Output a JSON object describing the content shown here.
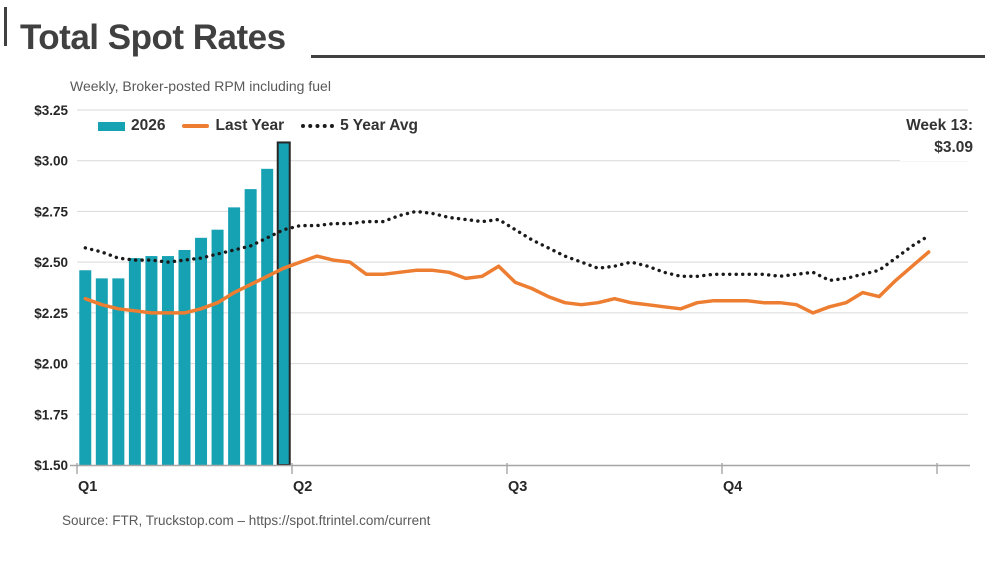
{
  "header": {
    "title": "Total Spot Rates"
  },
  "chart_data": {
    "type": "bar",
    "subtitle": "Weekly, Broker-posted RPM including fuel",
    "ylim": [
      1.5,
      3.25
    ],
    "y_ticks": [
      {
        "label": "$3.25",
        "value": 3.25
      },
      {
        "label": "$3.00",
        "value": 3.0
      },
      {
        "label": "$2.75",
        "value": 2.75
      },
      {
        "label": "$2.50",
        "value": 2.5
      },
      {
        "label": "$2.25",
        "value": 2.25
      },
      {
        "label": "$2.00",
        "value": 2.0
      },
      {
        "label": "$1.75",
        "value": 1.75
      },
      {
        "label": "$1.50",
        "value": 1.5
      }
    ],
    "x_ticks": [
      {
        "label": "Q1",
        "week": 0
      },
      {
        "label": "Q2",
        "week": 13
      },
      {
        "label": "Q3",
        "week": 26
      },
      {
        "label": "Q4",
        "week": 39
      }
    ],
    "axis_tick_weeks": [
      0,
      13,
      26,
      39,
      52
    ],
    "total_weeks": 52,
    "grid": true,
    "legend_position": "top-left",
    "annotation": {
      "line1": "Week 13:",
      "line2": "$3.09"
    },
    "colors": {
      "bar": "#17a2b3",
      "bar_highlight_border": "#262626",
      "last_year": "#ed7d31",
      "five_year_avg": "#1a1a1a",
      "gridline": "#d9d9d9",
      "axis": "#a6a6a6",
      "tick_label": "#262626"
    },
    "series": [
      {
        "name": "2026",
        "type": "bar",
        "color": "#17a2b3",
        "highlight_last": true,
        "values": [
          2.46,
          2.42,
          2.42,
          2.52,
          2.53,
          2.53,
          2.56,
          2.62,
          2.66,
          2.77,
          2.86,
          2.96,
          3.09
        ]
      },
      {
        "name": "Last Year",
        "type": "line",
        "color": "#ed7d31",
        "values": [
          2.32,
          2.29,
          2.27,
          2.26,
          2.25,
          2.25,
          2.25,
          2.27,
          2.3,
          2.35,
          2.39,
          2.43,
          2.47,
          2.5,
          2.53,
          2.51,
          2.5,
          2.44,
          2.44,
          2.45,
          2.46,
          2.46,
          2.45,
          2.42,
          2.43,
          2.48,
          2.4,
          2.37,
          2.33,
          2.3,
          2.29,
          2.3,
          2.32,
          2.3,
          2.29,
          2.28,
          2.27,
          2.3,
          2.31,
          2.31,
          2.31,
          2.3,
          2.3,
          2.29,
          2.25,
          2.28,
          2.3,
          2.35,
          2.33,
          2.41,
          2.48,
          2.55
        ]
      },
      {
        "name": "5 Year Avg",
        "type": "dotted-line",
        "color": "#1a1a1a",
        "values": [
          2.57,
          2.55,
          2.52,
          2.51,
          2.51,
          2.5,
          2.51,
          2.52,
          2.54,
          2.56,
          2.58,
          2.62,
          2.66,
          2.68,
          2.68,
          2.69,
          2.69,
          2.7,
          2.7,
          2.73,
          2.75,
          2.74,
          2.72,
          2.71,
          2.7,
          2.71,
          2.66,
          2.61,
          2.57,
          2.53,
          2.5,
          2.47,
          2.48,
          2.5,
          2.48,
          2.45,
          2.43,
          2.43,
          2.44,
          2.44,
          2.44,
          2.44,
          2.43,
          2.44,
          2.45,
          2.41,
          2.42,
          2.44,
          2.46,
          2.52,
          2.58,
          2.63
        ]
      }
    ]
  },
  "footer": {
    "source": "Source: FTR, Truckstop.com – https://spot.ftrintel.com/current"
  }
}
